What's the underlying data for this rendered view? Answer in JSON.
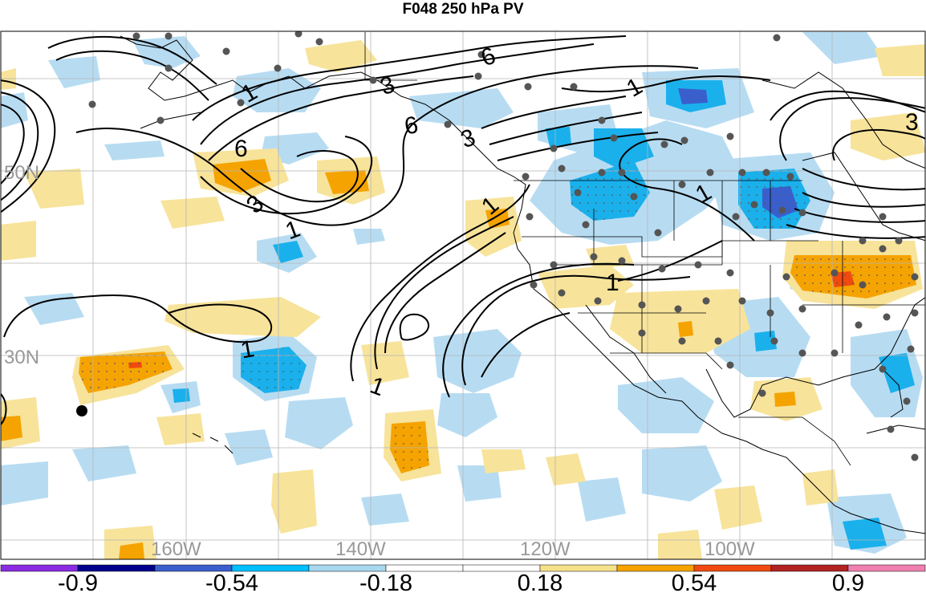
{
  "title": "F048 250 hPa PV",
  "lat_labels": [
    "50N",
    "30N"
  ],
  "lon_labels": [
    "160W",
    "140W",
    "120W",
    "100W"
  ],
  "contour_labels": [
    "6",
    "3",
    "1",
    "6",
    "3",
    "6",
    "3",
    "1",
    "1",
    "1",
    "1",
    "1",
    "1",
    "3",
    "1"
  ],
  "colorbar": {
    "colors": [
      "#8a2be2",
      "#00008b",
      "#3a5fcd",
      "#00bfff",
      "#a8d8f0",
      "#ffffff",
      "#ffffff",
      "#f5e18a",
      "#f5a300",
      "#f04a10",
      "#b22222",
      "#f080b0"
    ],
    "labels": [
      "-0.9",
      "-0.54",
      "-0.18",
      "0.18",
      "0.54",
      "0.9"
    ]
  }
}
